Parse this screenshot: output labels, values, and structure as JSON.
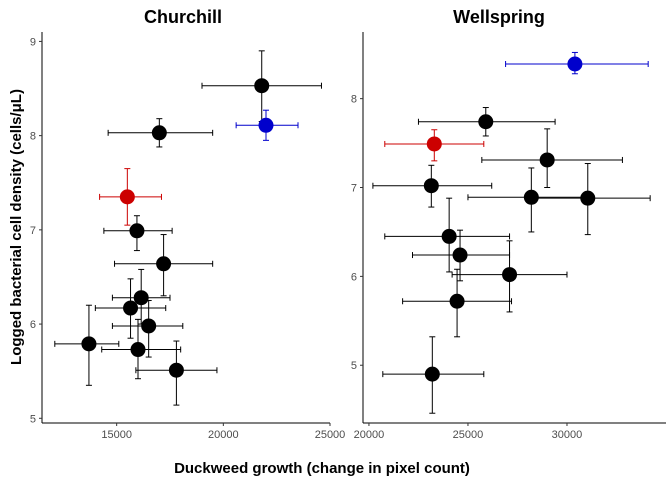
{
  "chart_data": {
    "type": "scatter",
    "xlabel": "Duckweed growth (change in pixel count)",
    "ylabel": "Logged bacterial cell density (cells/μL)",
    "colors": {
      "black": "#000000",
      "red": "#cc0000",
      "blue": "#0000cc"
    },
    "panels": [
      {
        "title": "Churchill",
        "xlim": [
          11500,
          25000
        ],
        "ylim": [
          4.95,
          9.1
        ],
        "xticks": [
          15000,
          20000,
          25000
        ],
        "xtick_labels": [
          "15000",
          "20000",
          "25000"
        ],
        "yticks": [
          5,
          6,
          7,
          8,
          9
        ],
        "ytick_labels": [
          "5",
          "6",
          "7",
          "8",
          "9"
        ],
        "points": [
          {
            "x": 21800,
            "y": 8.53,
            "xerr": [
              19000,
              24600
            ],
            "yerr": [
              8.15,
              8.9
            ],
            "color": "black"
          },
          {
            "x": 22000,
            "y": 8.11,
            "xerr": [
              20600,
              23500
            ],
            "yerr": [
              7.95,
              8.27
            ],
            "color": "blue"
          },
          {
            "x": 17000,
            "y": 8.03,
            "xerr": [
              14600,
              19500
            ],
            "yerr": [
              7.88,
              8.18
            ],
            "color": "black"
          },
          {
            "x": 15500,
            "y": 7.35,
            "xerr": [
              14200,
              17100
            ],
            "yerr": [
              7.05,
              7.65
            ],
            "color": "red"
          },
          {
            "x": 15950,
            "y": 6.99,
            "xerr": [
              14400,
              17600
            ],
            "yerr": [
              6.78,
              7.15
            ],
            "color": "black"
          },
          {
            "x": 17200,
            "y": 6.64,
            "xerr": [
              14900,
              19500
            ],
            "yerr": [
              6.3,
              6.95
            ],
            "color": "black"
          },
          {
            "x": 16150,
            "y": 6.28,
            "xerr": [
              14800,
              17500
            ],
            "yerr": [
              6.0,
              6.58
            ],
            "color": "black"
          },
          {
            "x": 15650,
            "y": 6.17,
            "xerr": [
              14000,
              17300
            ],
            "yerr": [
              5.85,
              6.48
            ],
            "color": "black"
          },
          {
            "x": 16500,
            "y": 5.98,
            "xerr": [
              14800,
              18100
            ],
            "yerr": [
              5.65,
              6.25
            ],
            "color": "black"
          },
          {
            "x": 13700,
            "y": 5.79,
            "xerr": [
              12100,
              15100
            ],
            "yerr": [
              5.35,
              6.2
            ],
            "color": "black"
          },
          {
            "x": 16000,
            "y": 5.73,
            "xerr": [
              14300,
              18000
            ],
            "yerr": [
              5.42,
              6.05
            ],
            "color": "black"
          },
          {
            "x": 17800,
            "y": 5.51,
            "xerr": [
              15900,
              19700
            ],
            "yerr": [
              5.14,
              5.82
            ],
            "color": "black"
          }
        ]
      },
      {
        "title": "Wellspring",
        "xlim": [
          19700,
          35000
        ],
        "ylim": [
          4.35,
          8.75
        ],
        "xticks": [
          20000,
          25000,
          30000
        ],
        "xtick_labels": [
          "20000",
          "25000",
          "30000"
        ],
        "yticks": [
          5,
          6,
          7,
          8
        ],
        "ytick_labels": [
          "5",
          "6",
          "7",
          "8"
        ],
        "points": [
          {
            "x": 30400,
            "y": 8.39,
            "xerr": [
              26900,
              34100
            ],
            "yerr": [
              8.28,
              8.52
            ],
            "color": "blue"
          },
          {
            "x": 25900,
            "y": 7.74,
            "xerr": [
              22500,
              29400
            ],
            "yerr": [
              7.58,
              7.9
            ],
            "color": "black"
          },
          {
            "x": 23300,
            "y": 7.49,
            "xerr": [
              20800,
              25800
            ],
            "yerr": [
              7.3,
              7.65
            ],
            "color": "red"
          },
          {
            "x": 29000,
            "y": 7.31,
            "xerr": [
              25700,
              32800
            ],
            "yerr": [
              7.0,
              7.66
            ],
            "color": "black"
          },
          {
            "x": 23150,
            "y": 7.02,
            "xerr": [
              20200,
              26200
            ],
            "yerr": [
              6.78,
              7.25
            ],
            "color": "black"
          },
          {
            "x": 28200,
            "y": 6.89,
            "xerr": [
              25000,
              31000
            ],
            "yerr": [
              6.5,
              7.22
            ],
            "color": "black"
          },
          {
            "x": 31050,
            "y": 6.88,
            "xerr": [
              28200,
              34200
            ],
            "yerr": [
              6.47,
              7.27
            ],
            "color": "black"
          },
          {
            "x": 24050,
            "y": 6.45,
            "xerr": [
              20800,
              27100
            ],
            "yerr": [
              6.05,
              6.88
            ],
            "color": "black"
          },
          {
            "x": 24600,
            "y": 6.24,
            "xerr": [
              22200,
              27100
            ],
            "yerr": [
              5.95,
              6.52
            ],
            "color": "black"
          },
          {
            "x": 27100,
            "y": 6.02,
            "xerr": [
              24200,
              30000
            ],
            "yerr": [
              5.6,
              6.4
            ],
            "color": "black"
          },
          {
            "x": 24450,
            "y": 5.72,
            "xerr": [
              21700,
              27200
            ],
            "yerr": [
              5.32,
              6.08
            ],
            "color": "black"
          },
          {
            "x": 23200,
            "y": 4.9,
            "xerr": [
              20700,
              25800
            ],
            "yerr": [
              4.46,
              5.32
            ],
            "color": "black"
          }
        ]
      }
    ]
  }
}
